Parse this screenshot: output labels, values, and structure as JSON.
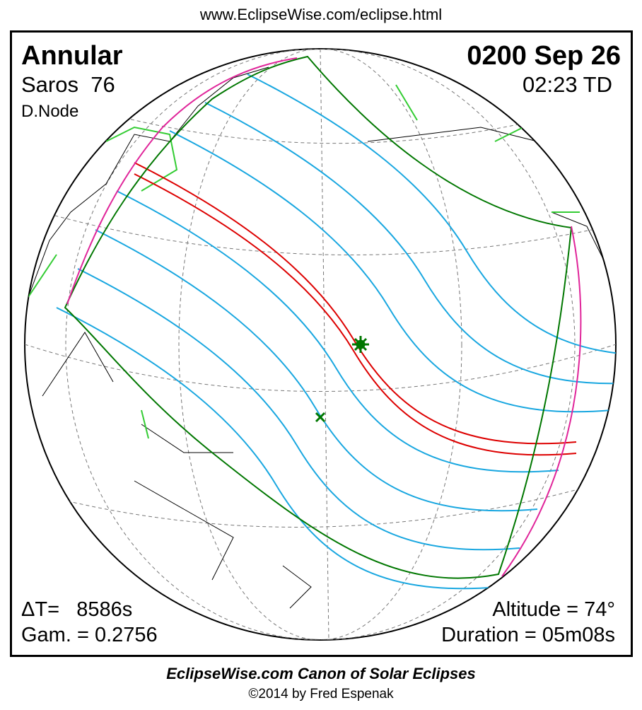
{
  "header": {
    "url": "www.EclipseWise.com/eclipse.html"
  },
  "panel": {
    "type": "Annular",
    "saros": "Saros  76",
    "node": "D.Node",
    "date": "0200 Sep 26",
    "time": "02:23 TD",
    "delta_t": "ΔT=   8586s",
    "gamma": "Gam. = 0.2756",
    "altitude": "Altitude = 74°",
    "duration": "Duration = 05m08s"
  },
  "footer": {
    "title": "EclipseWise.com Canon of Solar Eclipses",
    "credit": "©2014 by Fred Espenak"
  }
}
